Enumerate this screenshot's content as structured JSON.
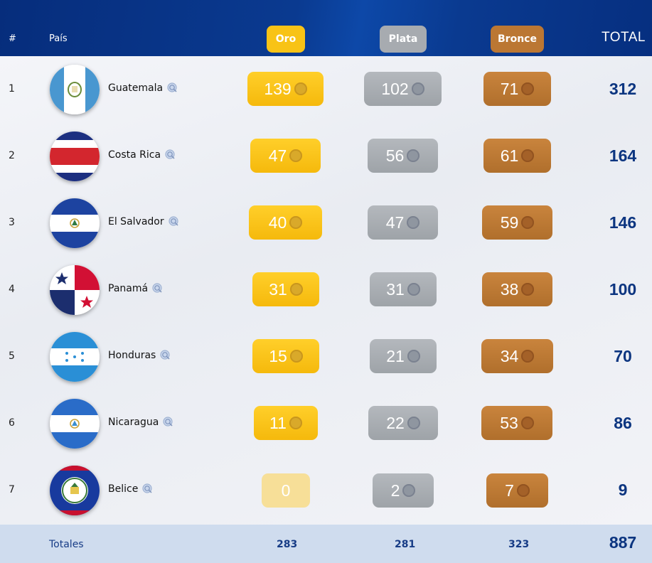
{
  "header": {
    "rank": "#",
    "country": "País",
    "gold": "Oro",
    "silver": "Plata",
    "bronze": "Bronce",
    "total": "TOTAL"
  },
  "colors": {
    "header_bg": "#062d7c",
    "gold": "#f8c316",
    "silver": "#a7abb0",
    "bronze": "#bb7733",
    "total_text": "#0c3580",
    "footer_bg": "#cfdcee"
  },
  "rows": [
    {
      "rank": "1",
      "country": "Guatemala",
      "gold": "139",
      "silver": "102",
      "bronze": "71",
      "total": "312"
    },
    {
      "rank": "2",
      "country": "Costa Rica",
      "gold": "47",
      "silver": "56",
      "bronze": "61",
      "total": "164"
    },
    {
      "rank": "3",
      "country": "El Salvador",
      "gold": "40",
      "silver": "47",
      "bronze": "59",
      "total": "146"
    },
    {
      "rank": "4",
      "country": "Panamá",
      "gold": "31",
      "silver": "31",
      "bronze": "38",
      "total": "100"
    },
    {
      "rank": "5",
      "country": "Honduras",
      "gold": "15",
      "silver": "21",
      "bronze": "34",
      "total": "70"
    },
    {
      "rank": "6",
      "country": "Nicaragua",
      "gold": "11",
      "silver": "22",
      "bronze": "53",
      "total": "86"
    },
    {
      "rank": "7",
      "country": "Belice",
      "gold": "0",
      "silver": "2",
      "bronze": "7",
      "total": "9"
    }
  ],
  "footer": {
    "label": "Totales",
    "gold": "283",
    "silver": "281",
    "bronze": "323",
    "total": "887"
  }
}
